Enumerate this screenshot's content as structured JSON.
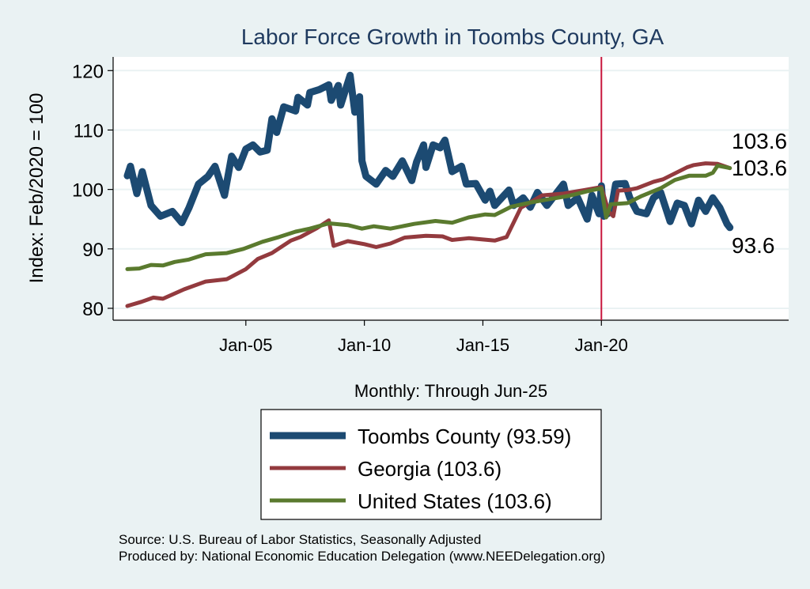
{
  "chart_data": {
    "type": "line",
    "title": "Labor Force Growth in Toombs  County, GA",
    "xlabel": "Monthly: Through Jun-25",
    "ylabel": "Index: Feb/2020 = 100",
    "xlim": [
      1999.4,
      2027.9
    ],
    "ylim": [
      78,
      122.3
    ],
    "x_ticks": [
      {
        "value": 2005,
        "label": "Jan-05"
      },
      {
        "value": 2010,
        "label": "Jan-10"
      },
      {
        "value": 2015,
        "label": "Jan-15"
      },
      {
        "value": 2020,
        "label": "Jan-20"
      }
    ],
    "y_ticks": [
      80,
      90,
      100,
      110,
      120
    ],
    "grid": true,
    "reference_line": {
      "x": 2020.0,
      "color": "#c8163c"
    },
    "legend_position": "bottom",
    "series": [
      {
        "name": "Toombs  County (93.59)",
        "color": "#1c4a72",
        "end_label": "93.6",
        "points": [
          [
            2000.0,
            102.3
          ],
          [
            2000.13,
            103.9
          ],
          [
            2000.4,
            99.3
          ],
          [
            2000.63,
            103
          ],
          [
            2001.0,
            97.3
          ],
          [
            2001.4,
            95.5
          ],
          [
            2001.9,
            96.3
          ],
          [
            2002.3,
            94.4
          ],
          [
            2002.6,
            96.9
          ],
          [
            2003.0,
            100.9
          ],
          [
            2003.4,
            102.2
          ],
          [
            2003.7,
            103.9
          ],
          [
            2004.1,
            99
          ],
          [
            2004.4,
            105.6
          ],
          [
            2004.7,
            103.7
          ],
          [
            2005.0,
            106.8
          ],
          [
            2005.3,
            107.5
          ],
          [
            2005.6,
            106.3
          ],
          [
            2005.9,
            106.6
          ],
          [
            2006.1,
            111.9
          ],
          [
            2006.3,
            109.6
          ],
          [
            2006.6,
            113.9
          ],
          [
            2007.1,
            113.2
          ],
          [
            2007.2,
            115.5
          ],
          [
            2007.6,
            114.2
          ],
          [
            2007.7,
            116.3
          ],
          [
            2008.1,
            116.8
          ],
          [
            2008.5,
            117.6
          ],
          [
            2008.6,
            115
          ],
          [
            2008.9,
            117.5
          ],
          [
            2009.0,
            114.2
          ],
          [
            2009.4,
            119.2
          ],
          [
            2009.6,
            113
          ],
          [
            2009.8,
            115.6
          ],
          [
            2009.9,
            104.8
          ],
          [
            2010.07,
            102.2
          ],
          [
            2010.5,
            100.9
          ],
          [
            2010.9,
            103.2
          ],
          [
            2011.2,
            102.2
          ],
          [
            2011.6,
            104.8
          ],
          [
            2012.0,
            101.5
          ],
          [
            2012.2,
            104.6
          ],
          [
            2012.5,
            107.5
          ],
          [
            2012.6,
            103.7
          ],
          [
            2012.9,
            107.5
          ],
          [
            2013.2,
            107
          ],
          [
            2013.4,
            108.3
          ],
          [
            2013.7,
            103
          ],
          [
            2014.1,
            103.9
          ],
          [
            2014.3,
            100.9
          ],
          [
            2014.7,
            101
          ],
          [
            2015.1,
            98.2
          ],
          [
            2015.3,
            99.7
          ],
          [
            2015.5,
            97.3
          ],
          [
            2016.1,
            99.9
          ],
          [
            2016.3,
            97.3
          ],
          [
            2016.7,
            98.6
          ],
          [
            2017.0,
            97
          ],
          [
            2017.3,
            99.5
          ],
          [
            2017.7,
            97.3
          ],
          [
            2018.4,
            100.9
          ],
          [
            2018.6,
            97.3
          ],
          [
            2019.0,
            98.6
          ],
          [
            2019.4,
            95
          ],
          [
            2019.6,
            99
          ],
          [
            2019.9,
            95.9
          ],
          [
            2020.0,
            100.6
          ],
          [
            2020.1,
            95.5
          ],
          [
            2020.4,
            96.3
          ],
          [
            2020.6,
            100.9
          ],
          [
            2021.0,
            101
          ],
          [
            2021.2,
            98.6
          ],
          [
            2021.5,
            96.3
          ],
          [
            2021.9,
            95.9
          ],
          [
            2022.2,
            98.6
          ],
          [
            2022.5,
            99.5
          ],
          [
            2022.9,
            94.6
          ],
          [
            2023.2,
            97.7
          ],
          [
            2023.5,
            97.3
          ],
          [
            2023.8,
            94.2
          ],
          [
            2024.1,
            98.2
          ],
          [
            2024.4,
            96.3
          ],
          [
            2024.7,
            98.6
          ],
          [
            2025.0,
            96.9
          ],
          [
            2025.3,
            94.2
          ],
          [
            2025.42,
            93.59
          ]
        ]
      },
      {
        "name": "Georgia (103.6)",
        "color": "#933a3e",
        "end_label": "103.6",
        "points": [
          [
            2000.0,
            80.4
          ],
          [
            2000.6,
            81.1
          ],
          [
            2001.1,
            81.8
          ],
          [
            2001.5,
            81.6
          ],
          [
            2002.4,
            83.2
          ],
          [
            2003.3,
            84.5
          ],
          [
            2004.2,
            84.9
          ],
          [
            2005.0,
            86.6
          ],
          [
            2005.5,
            88.3
          ],
          [
            2006.1,
            89.3
          ],
          [
            2006.9,
            91.4
          ],
          [
            2007.3,
            92
          ],
          [
            2008.0,
            93.5
          ],
          [
            2008.5,
            94.8
          ],
          [
            2008.7,
            90.5
          ],
          [
            2009.3,
            91.3
          ],
          [
            2010.0,
            90.8
          ],
          [
            2010.5,
            90.3
          ],
          [
            2011.1,
            90.9
          ],
          [
            2011.7,
            91.9
          ],
          [
            2012.6,
            92.2
          ],
          [
            2013.3,
            92.1
          ],
          [
            2013.7,
            91.5
          ],
          [
            2014.4,
            91.8
          ],
          [
            2015.5,
            91.4
          ],
          [
            2016.0,
            92
          ],
          [
            2016.6,
            96.9
          ],
          [
            2017.5,
            99
          ],
          [
            2018.4,
            99.3
          ],
          [
            2019.3,
            99.9
          ],
          [
            2020.0,
            100.4
          ],
          [
            2020.3,
            96.3
          ],
          [
            2020.5,
            95.5
          ],
          [
            2020.7,
            99.8
          ],
          [
            2021.1,
            99.9
          ],
          [
            2021.5,
            100.2
          ],
          [
            2022.2,
            101.3
          ],
          [
            2022.6,
            101.7
          ],
          [
            2023.6,
            103.7
          ],
          [
            2023.9,
            104.1
          ],
          [
            2024.4,
            104.4
          ],
          [
            2024.9,
            104.3
          ],
          [
            2025.42,
            103.6
          ]
        ]
      },
      {
        "name": "United States (103.6)",
        "color": "#5a7a2e",
        "end_label": "103.6",
        "points": [
          [
            2000.0,
            86.6
          ],
          [
            2000.5,
            86.7
          ],
          [
            2001.0,
            87.3
          ],
          [
            2001.5,
            87.2
          ],
          [
            2002.0,
            87.8
          ],
          [
            2002.6,
            88.2
          ],
          [
            2003.3,
            89.1
          ],
          [
            2004.2,
            89.3
          ],
          [
            2004.9,
            90
          ],
          [
            2005.7,
            91.2
          ],
          [
            2006.4,
            92
          ],
          [
            2007.1,
            92.9
          ],
          [
            2007.7,
            93.4
          ],
          [
            2008.5,
            94.3
          ],
          [
            2009.3,
            94
          ],
          [
            2009.9,
            93.4
          ],
          [
            2010.4,
            93.8
          ],
          [
            2011.1,
            93.4
          ],
          [
            2012.1,
            94.2
          ],
          [
            2013.0,
            94.7
          ],
          [
            2013.7,
            94.4
          ],
          [
            2014.4,
            95.3
          ],
          [
            2015.1,
            95.8
          ],
          [
            2015.5,
            95.7
          ],
          [
            2016.2,
            97.1
          ],
          [
            2017.0,
            97.8
          ],
          [
            2017.7,
            98.3
          ],
          [
            2018.6,
            98.9
          ],
          [
            2019.4,
            99.7
          ],
          [
            2020.0,
            100.2
          ],
          [
            2020.2,
            95.3
          ],
          [
            2020.4,
            97.5
          ],
          [
            2021.1,
            97.7
          ],
          [
            2021.7,
            98.9
          ],
          [
            2022.5,
            100.2
          ],
          [
            2023.1,
            101.6
          ],
          [
            2023.7,
            102.3
          ],
          [
            2024.4,
            102.3
          ],
          [
            2024.7,
            102.8
          ],
          [
            2024.9,
            104
          ],
          [
            2025.42,
            103.6
          ]
        ]
      }
    ]
  },
  "footer": {
    "source": "Source: U.S. Bureau of Labor Statistics, Seasonally Adjusted",
    "produced_by": "Produced by: National Economic Education Delegation (www.NEEDelegation.org)"
  }
}
